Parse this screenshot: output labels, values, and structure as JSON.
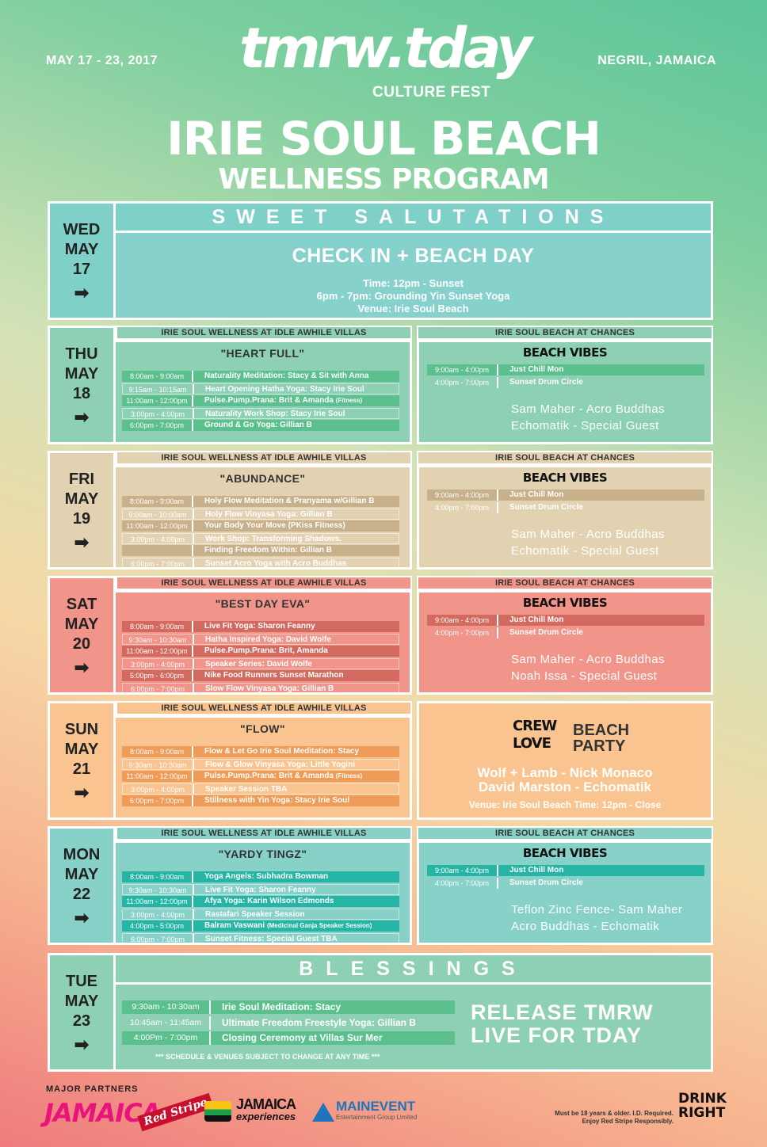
{
  "header": {
    "dates": "MAY 17 - 23, 2017",
    "location": "NEGRIL, JAMAICA",
    "brand": "tmrw.tday",
    "culture": "CULTURE FEST",
    "title": "IRIE SOUL BEACH",
    "subtitle": "WELLNESS PROGRAM"
  },
  "wed": {
    "day": "WED",
    "month": "MAY",
    "date": "17",
    "arrow": "➡",
    "banner": "SWEET SALUTATIONS",
    "headline": "CHECK IN + BEACH DAY",
    "line1": "Time: 12pm - Sunset",
    "line2": "6pm - 7pm: Grounding Yin Sunset Yoga",
    "line3": "Venue: Irie Soul Beach"
  },
  "labels": {
    "villas": "IRIE SOUL WELLNESS AT IDLE AWHILE VILLAS",
    "chances": "IRIE SOUL BEACH AT CHANCES",
    "beach_vibes": "BEACH VIBES"
  },
  "thu": {
    "day": "THU",
    "month": "MAY",
    "date": "18",
    "arrow": "➡",
    "theme": "\"HEART FULL\"",
    "rows": [
      [
        "8:00am - 9:00am",
        "Naturality Meditation: Stacy & Sit with Anna",
        ""
      ],
      [
        "9:15am - 10:15am",
        "Heart Opening Hatha Yoga: Stacy Irie Soul",
        ""
      ],
      [
        "11:00am - 12:00pm",
        "Pulse.Pump.Prana: Brit & Amanda",
        "(Fitness)"
      ],
      [
        "3:00pm - 4:00pm",
        "Naturality Work Shop: Stacy Irie Soul",
        ""
      ],
      [
        "6:00pm - 7:00pm",
        "Ground & Go Yoga: Gillian B",
        ""
      ]
    ],
    "beach": [
      [
        "9:00am - 4:00pm",
        "Just Chill Mon"
      ],
      [
        "4:00pm - 7:00pm",
        "Sunset Drum Circle"
      ]
    ],
    "act1": "Sam Maher - Acro Buddhas",
    "act2": "Echomatik - Special Guest"
  },
  "fri": {
    "day": "FRI",
    "month": "MAY",
    "date": "19",
    "arrow": "➡",
    "theme": "\"ABUNDANCE\"",
    "rows": [
      [
        "8:00am - 9:00am",
        "Holy Flow Meditation & Pranyama w/Gillian B",
        ""
      ],
      [
        "9:00am - 10:00am",
        "Holy Flow Vinyasa Yoga: Gillian B",
        ""
      ],
      [
        "11:00am - 12:00pm",
        "Your Body Your Move (PKiss Fitness)",
        ""
      ],
      [
        "3:00pm - 4:00pm",
        "Work Shop: Transforming Shadows.",
        ""
      ],
      [
        "",
        "Finding Freedom Within: Gillian B",
        ""
      ],
      [
        "6:00pm - 7:00pm",
        "Sunset Acro Yoga with Acro Buddhas",
        ""
      ]
    ],
    "beach": [
      [
        "9:00am - 4:00pm",
        "Just Chill Mon"
      ],
      [
        "4:00pm - 7:00pm",
        "Sunset Drum Circle"
      ]
    ],
    "act1": "Sam Maher - Acro Buddhas",
    "act2": "Echomatik - Special Guest"
  },
  "sat": {
    "day": "SAT",
    "month": "MAY",
    "date": "20",
    "arrow": "➡",
    "theme": "\"BEST DAY EVA\"",
    "rows": [
      [
        "8:00am - 9:00am",
        "Live Fit Yoga: Sharon Feanny",
        ""
      ],
      [
        "9:30am - 10:30am",
        "Hatha Inspired Yoga: David Wolfe",
        ""
      ],
      [
        "11:00am - 12:00pm",
        "Pulse.Pump.Prana: Brit, Amanda",
        ""
      ],
      [
        "3:00pm - 4:00pm",
        "Speaker Series: David Wolfe",
        ""
      ],
      [
        "5:00pm - 6:00pm",
        "Nike Food Runners Sunset Marathon",
        ""
      ],
      [
        "6:00pm - 7:00pm",
        "Slow Flow Vinyasa Yoga: Gillian B",
        ""
      ]
    ],
    "beach": [
      [
        "9:00am - 4:00pm",
        "Just Chill Mon"
      ],
      [
        "4:00pm - 7:00pm",
        "Sunset Drum Circle"
      ]
    ],
    "act1": "Sam Maher - Acro Buddhas",
    "act2": "Noah Issa - Special Guest"
  },
  "sun": {
    "day": "SUN",
    "month": "MAY",
    "date": "21",
    "arrow": "➡",
    "theme": "\"FLOW\"",
    "rows": [
      [
        "8:00am - 9:00am",
        "Flow & Let Go Irie Soul Meditation: Stacy",
        ""
      ],
      [
        "9:30am - 10:30am",
        "Flow & Glow Vinyasa Yoga: Little Yogini",
        ""
      ],
      [
        "11:00am - 12:00pm",
        "Pulse.Pump.Prana: Brit & Amanda",
        "(Fitness)"
      ],
      [
        "3:00pm - 4:00pm",
        "Speaker Session TBA",
        ""
      ],
      [
        "6:00pm - 7:00pm",
        "Stillness with Yin Yoga: Stacy Irie Soul",
        ""
      ]
    ],
    "crew1": "CREW",
    "crew2": "LOVE",
    "party1": "BEACH",
    "party2": "PARTY",
    "line1": "Wolf + Lamb - Nick Monaco",
    "line2": "David Marston - Echomatik",
    "venue": "Venue: Irie Soul Beach Time: 12pm - Close"
  },
  "mon": {
    "day": "MON",
    "month": "MAY",
    "date": "22",
    "arrow": "➡",
    "theme": "\"YARDY TINGZ\"",
    "rows": [
      [
        "8:00am - 9:00am",
        "Yoga Angels: Subhadra Bowman",
        ""
      ],
      [
        "9:30am - 10:30am",
        "Live Fit Yoga: Sharon Feanny",
        ""
      ],
      [
        "11:00am - 12:00pm",
        "Afya Yoga: Karin Wilson Edmonds",
        ""
      ],
      [
        "3:00pm - 4:00pm",
        "Rastafari Speaker Session",
        ""
      ],
      [
        "4:00pm - 5:00pm",
        "Balram Vaswani",
        "(Medicinal Ganja Speaker Session)"
      ],
      [
        "6:00pm - 7:00pm",
        "Sunset Fitness: Special Guest TBA",
        ""
      ]
    ],
    "beach": [
      [
        "9:00am - 4:00pm",
        "Just Chill Mon"
      ],
      [
        "4:00pm - 7:00pm",
        "Sunset Drum Circle"
      ]
    ],
    "act1": "Teflon Zinc Fence- Sam Maher",
    "act2": "Acro Buddhas - Echomatik"
  },
  "tue": {
    "day": "TUE",
    "month": "MAY",
    "date": "23",
    "arrow": "➡",
    "banner": "BLESSINGS",
    "rows": [
      [
        "9:30am - 10:30am",
        "Irie Soul Meditation: Stacy"
      ],
      [
        "10:45am - 11:45am",
        "Ultimate Freedom Freestyle Yoga: Gillian B"
      ],
      [
        "4:00Pm - 7:00pm",
        "Closing Ceremony at Villas Sur Mer"
      ]
    ],
    "slogan1": "RELEASE TMRW",
    "slogan2": "LIVE FOR TDAY",
    "note": "*** SCHEDULE & VENUES SUBJECT TO CHANGE AT ANY TIME ***"
  },
  "footer": {
    "partners": "MAJOR PARTNERS",
    "jamaica": "JAMAICA",
    "redstripe": "Red Stripe",
    "jx1": "JAMAICA",
    "jx2": "experiences",
    "me1": "MAINEVENT",
    "me2": "Entertainment Group Limited",
    "legal1": "Must be 18 years & older. I.D. Required.",
    "legal2": "Enjoy Red Stripe Responsibly.",
    "dr1": "DRINK",
    "dr2": "RIGHT"
  },
  "colors": {
    "wed": "#7fd0c9",
    "thu": "#8dd0b3",
    "thuDark": "#5cbf8e",
    "fri": "#e3d2b2",
    "friDark": "#c8b08a",
    "sat": "#f1948a",
    "satDark": "#d36a5f",
    "sun": "#f9c48f",
    "sunDark": "#ee9c58",
    "mon": "#87d1c9",
    "monDark": "#26b5a5"
  }
}
